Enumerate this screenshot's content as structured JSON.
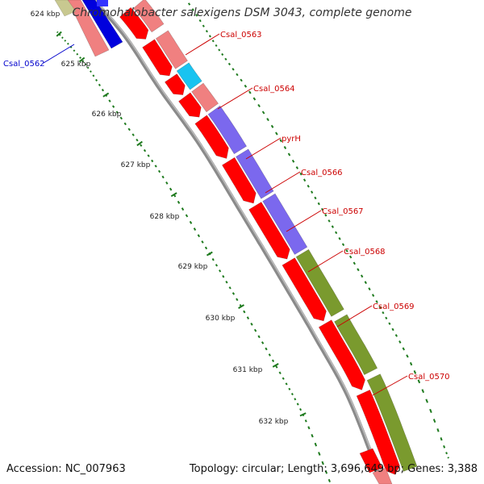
{
  "title": "Chromohalobacter salexigens DSM 3043, complete genome",
  "accession_text": "Accession: NC_007963",
  "summary_text": "Topology: circular; Length: 3,696,649 bp; Genes: 3,388",
  "colors": {
    "backbone": "#8a8a8a",
    "tick": "#1e7a1e",
    "cds_strand_red": "#ff0000",
    "cds_light": "#f08080",
    "cds_cyan": "#19c3f0",
    "cds_purple": "#7b68ee",
    "cds_olive": "#7a9a2e",
    "cds_blue": "#0000dd",
    "label_red": "#cc0000",
    "label_blue": "#0000cc"
  },
  "kbp_labels": [
    "624 kbp",
    "625 kbp",
    "626 kbp",
    "627 kbp",
    "628 kbp",
    "629 kbp",
    "630 kbp",
    "631 kbp",
    "632 kbp"
  ],
  "gene_labels": [
    {
      "text": "Csal_0562",
      "color": "blue"
    },
    {
      "text": "Csal_0563",
      "color": "red"
    },
    {
      "text": "Csal_0564",
      "color": "red"
    },
    {
      "text": "pyrH",
      "color": "red"
    },
    {
      "text": "Csal_0566",
      "color": "red"
    },
    {
      "text": "Csal_0567",
      "color": "red"
    },
    {
      "text": "Csal_0568",
      "color": "red"
    },
    {
      "text": "Csal_0569",
      "color": "red"
    },
    {
      "text": "Csal_0570",
      "color": "red"
    }
  ]
}
